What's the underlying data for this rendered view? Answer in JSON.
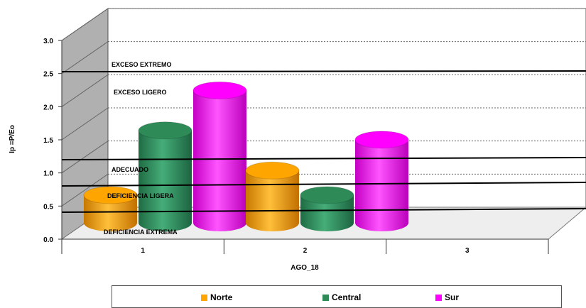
{
  "chart_data": {
    "type": "bar",
    "style": "3d-cylinder",
    "categories": [
      "1",
      "2",
      "3"
    ],
    "xlabel": "AGO_18",
    "ylabel": "Ip =P/Eo",
    "ylim": [
      0,
      3.0
    ],
    "yticks": [
      "0.0",
      "0.5",
      "1.0",
      "1.5",
      "2.0",
      "2.5",
      "3.0"
    ],
    "grid": true,
    "legend_position": "bottom",
    "series": [
      {
        "name": "Norte",
        "color": "#ffa500",
        "values": [
          0.45,
          0.85,
          null
        ]
      },
      {
        "name": "Central",
        "color": "#2e8b57",
        "values": [
          1.5,
          0.45,
          null
        ]
      },
      {
        "name": "Sur",
        "color": "#ff00ff",
        "values": [
          2.15,
          1.35,
          null
        ]
      }
    ],
    "thresholds": [
      {
        "label": "EXCESO  EXTREMO",
        "value": 2.5
      },
      {
        "label": "EXCESO  LIGERO",
        "value": null
      },
      {
        "label": "ADECUADO",
        "value": 1.2
      },
      {
        "label": "DEFICIENCIA  LIGERA",
        "value": 0.8
      },
      {
        "label": "DEFICIENCIA  EXTREMA",
        "value": 0.4
      }
    ]
  }
}
